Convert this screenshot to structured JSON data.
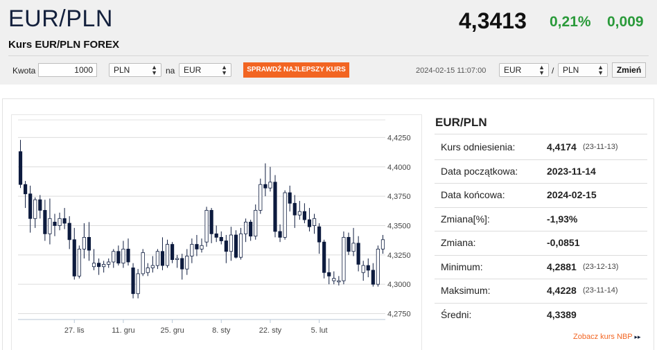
{
  "header": {
    "pair": "EUR/PLN",
    "subtitle": "Kurs EUR/PLN FOREX",
    "price": "4,3413",
    "change_pct": "0,21%",
    "change_abs": "0,009",
    "change_color": "#2a9a3a"
  },
  "converter": {
    "amount_label": "Kwota",
    "amount_value": "1000",
    "from_currency": "PLN",
    "to_label": "na",
    "to_currency": "EUR",
    "cta_label": "SPRAWDŹ NAJLEPSZY KURS",
    "cta_color": "#f26522",
    "datetime": "2024-02-15 11:07:00",
    "base_currency": "EUR",
    "separator": "/",
    "quote_currency": "PLN",
    "change_button": "Zmień"
  },
  "panel": {
    "title": "EUR/PLN",
    "rows": [
      {
        "label": "Kurs odniesienia:",
        "value": "4,4174",
        "date": "(23-11-13)"
      },
      {
        "label": "Data początkowa:",
        "value": "2023-11-14",
        "date": ""
      },
      {
        "label": "Data końcowa:",
        "value": "2024-02-15",
        "date": ""
      },
      {
        "label": "Zmiana[%]:",
        "value": "-1,93%",
        "date": ""
      },
      {
        "label": "Zmiana:",
        "value": "-0,0851",
        "date": ""
      },
      {
        "label": "Minimum:",
        "value": "4,2881",
        "date": "(23-12-13)"
      },
      {
        "label": "Maksimum:",
        "value": "4,4228",
        "date": "(23-11-14)"
      },
      {
        "label": "Średni:",
        "value": "4,3389",
        "date": ""
      }
    ],
    "nbp_link": "Zobacz kurs NBP",
    "nbp_arrow": "▸▸"
  },
  "chart_data": {
    "type": "candlestick",
    "x_tick_labels": [
      "27. lis",
      "11. gru",
      "25. gru",
      "8. sty",
      "22. sty",
      "5. lut"
    ],
    "x_tick_index": [
      11,
      21,
      31,
      41,
      51,
      61
    ],
    "y_ticks": [
      4.275,
      4.3,
      4.325,
      4.35,
      4.375,
      4.4,
      4.425
    ],
    "y_tick_labels": [
      "4,2750",
      "4,3000",
      "4,3250",
      "4,3500",
      "4,3750",
      "4,4000",
      "4,4250"
    ],
    "ylim": [
      4.27,
      4.44
    ],
    "grid": true,
    "up_color": "#ffffff",
    "down_color": "#0d1b3e",
    "candles": [
      {
        "o": 4.413,
        "h": 4.423,
        "l": 4.382,
        "c": 4.385
      },
      {
        "o": 4.385,
        "h": 4.388,
        "l": 4.365,
        "c": 4.377
      },
      {
        "o": 4.377,
        "h": 4.384,
        "l": 4.344,
        "c": 4.356
      },
      {
        "o": 4.356,
        "h": 4.374,
        "l": 4.348,
        "c": 4.372
      },
      {
        "o": 4.372,
        "h": 4.376,
        "l": 4.356,
        "c": 4.363
      },
      {
        "o": 4.363,
        "h": 4.372,
        "l": 4.337,
        "c": 4.343
      },
      {
        "o": 4.343,
        "h": 4.373,
        "l": 4.334,
        "c": 4.356
      },
      {
        "o": 4.353,
        "h": 4.36,
        "l": 4.341,
        "c": 4.35
      },
      {
        "o": 4.35,
        "h": 4.361,
        "l": 4.346,
        "c": 4.356
      },
      {
        "o": 4.356,
        "h": 4.365,
        "l": 4.347,
        "c": 4.352
      },
      {
        "o": 4.352,
        "h": 4.358,
        "l": 4.33,
        "c": 4.338
      },
      {
        "o": 4.338,
        "h": 4.348,
        "l": 4.304,
        "c": 4.307
      },
      {
        "o": 4.307,
        "h": 4.333,
        "l": 4.305,
        "c": 4.33
      },
      {
        "o": 4.33,
        "h": 4.352,
        "l": 4.322,
        "c": 4.34
      },
      {
        "o": 4.34,
        "h": 4.353,
        "l": 4.32,
        "c": 4.329
      },
      {
        "o": 4.315,
        "h": 4.33,
        "l": 4.312,
        "c": 4.318
      },
      {
        "o": 4.318,
        "h": 4.322,
        "l": 4.308,
        "c": 4.315
      },
      {
        "o": 4.315,
        "h": 4.32,
        "l": 4.31,
        "c": 4.317
      },
      {
        "o": 4.317,
        "h": 4.322,
        "l": 4.314,
        "c": 4.319
      },
      {
        "o": 4.319,
        "h": 4.33,
        "l": 4.314,
        "c": 4.328
      },
      {
        "o": 4.328,
        "h": 4.333,
        "l": 4.316,
        "c": 4.318
      },
      {
        "o": 4.318,
        "h": 4.337,
        "l": 4.314,
        "c": 4.33
      },
      {
        "o": 4.33,
        "h": 4.339,
        "l": 4.316,
        "c": 4.319
      },
      {
        "o": 4.314,
        "h": 4.318,
        "l": 4.288,
        "c": 4.292
      },
      {
        "o": 4.292,
        "h": 4.313,
        "l": 4.288,
        "c": 4.309
      },
      {
        "o": 4.309,
        "h": 4.33,
        "l": 4.307,
        "c": 4.327
      },
      {
        "o": 4.31,
        "h": 4.318,
        "l": 4.307,
        "c": 4.314
      },
      {
        "o": 4.314,
        "h": 4.324,
        "l": 4.31,
        "c": 4.316
      },
      {
        "o": 4.316,
        "h": 4.33,
        "l": 4.313,
        "c": 4.328
      },
      {
        "o": 4.328,
        "h": 4.34,
        "l": 4.312,
        "c": 4.316
      },
      {
        "o": 4.316,
        "h": 4.338,
        "l": 4.314,
        "c": 4.334
      },
      {
        "o": 4.334,
        "h": 4.336,
        "l": 4.318,
        "c": 4.321
      },
      {
        "o": 4.321,
        "h": 4.325,
        "l": 4.314,
        "c": 4.322
      },
      {
        "o": 4.322,
        "h": 4.326,
        "l": 4.304,
        "c": 4.313
      },
      {
        "o": 4.313,
        "h": 4.33,
        "l": 4.308,
        "c": 4.324
      },
      {
        "o": 4.324,
        "h": 4.339,
        "l": 4.318,
        "c": 4.334
      },
      {
        "o": 4.334,
        "h": 4.342,
        "l": 4.324,
        "c": 4.33
      },
      {
        "o": 4.33,
        "h": 4.339,
        "l": 4.327,
        "c": 4.333
      },
      {
        "o": 4.336,
        "h": 4.366,
        "l": 4.332,
        "c": 4.363
      },
      {
        "o": 4.363,
        "h": 4.365,
        "l": 4.335,
        "c": 4.343
      },
      {
        "o": 4.343,
        "h": 4.35,
        "l": 4.336,
        "c": 4.34
      },
      {
        "o": 4.34,
        "h": 4.345,
        "l": 4.334,
        "c": 4.337
      },
      {
        "o": 4.337,
        "h": 4.342,
        "l": 4.318,
        "c": 4.328
      },
      {
        "o": 4.328,
        "h": 4.349,
        "l": 4.32,
        "c": 4.342
      },
      {
        "o": 4.342,
        "h": 4.346,
        "l": 4.322,
        "c": 4.323
      },
      {
        "o": 4.323,
        "h": 4.348,
        "l": 4.321,
        "c": 4.343
      },
      {
        "o": 4.343,
        "h": 4.356,
        "l": 4.336,
        "c": 4.353
      },
      {
        "o": 4.353,
        "h": 4.355,
        "l": 4.337,
        "c": 4.341
      },
      {
        "o": 4.341,
        "h": 4.368,
        "l": 4.338,
        "c": 4.363
      },
      {
        "o": 4.363,
        "h": 4.39,
        "l": 4.36,
        "c": 4.385
      },
      {
        "o": 4.385,
        "h": 4.403,
        "l": 4.375,
        "c": 4.382
      },
      {
        "o": 4.382,
        "h": 4.4,
        "l": 4.379,
        "c": 4.387
      },
      {
        "o": 4.387,
        "h": 4.393,
        "l": 4.34,
        "c": 4.345
      },
      {
        "o": 4.345,
        "h": 4.351,
        "l": 4.336,
        "c": 4.34
      },
      {
        "o": 4.34,
        "h": 4.38,
        "l": 4.338,
        "c": 4.378
      },
      {
        "o": 4.378,
        "h": 4.384,
        "l": 4.362,
        "c": 4.369
      },
      {
        "o": 4.369,
        "h": 4.376,
        "l": 4.348,
        "c": 4.359
      },
      {
        "o": 4.359,
        "h": 4.371,
        "l": 4.355,
        "c": 4.362
      },
      {
        "o": 4.362,
        "h": 4.369,
        "l": 4.352,
        "c": 4.355
      },
      {
        "o": 4.355,
        "h": 4.365,
        "l": 4.345,
        "c": 4.349
      },
      {
        "o": 4.35,
        "h": 4.36,
        "l": 4.343,
        "c": 4.356
      },
      {
        "o": 4.349,
        "h": 4.352,
        "l": 4.326,
        "c": 4.336
      },
      {
        "o": 4.336,
        "h": 4.338,
        "l": 4.305,
        "c": 4.31
      },
      {
        "o": 4.31,
        "h": 4.322,
        "l": 4.3,
        "c": 4.307
      },
      {
        "o": 4.303,
        "h": 4.311,
        "l": 4.3,
        "c": 4.305
      },
      {
        "o": 4.302,
        "h": 4.307,
        "l": 4.299,
        "c": 4.303
      },
      {
        "o": 4.303,
        "h": 4.345,
        "l": 4.3,
        "c": 4.34
      },
      {
        "o": 4.34,
        "h": 4.344,
        "l": 4.325,
        "c": 4.328
      },
      {
        "o": 4.328,
        "h": 4.348,
        "l": 4.324,
        "c": 4.335
      },
      {
        "o": 4.335,
        "h": 4.341,
        "l": 4.311,
        "c": 4.317
      },
      {
        "o": 4.31,
        "h": 4.32,
        "l": 4.303,
        "c": 4.316
      },
      {
        "o": 4.316,
        "h": 4.322,
        "l": 4.306,
        "c": 4.312
      },
      {
        "o": 4.312,
        "h": 4.318,
        "l": 4.298,
        "c": 4.3
      },
      {
        "o": 4.3,
        "h": 4.333,
        "l": 4.298,
        "c": 4.33
      },
      {
        "o": 4.33,
        "h": 4.342,
        "l": 4.326,
        "c": 4.338
      }
    ]
  }
}
